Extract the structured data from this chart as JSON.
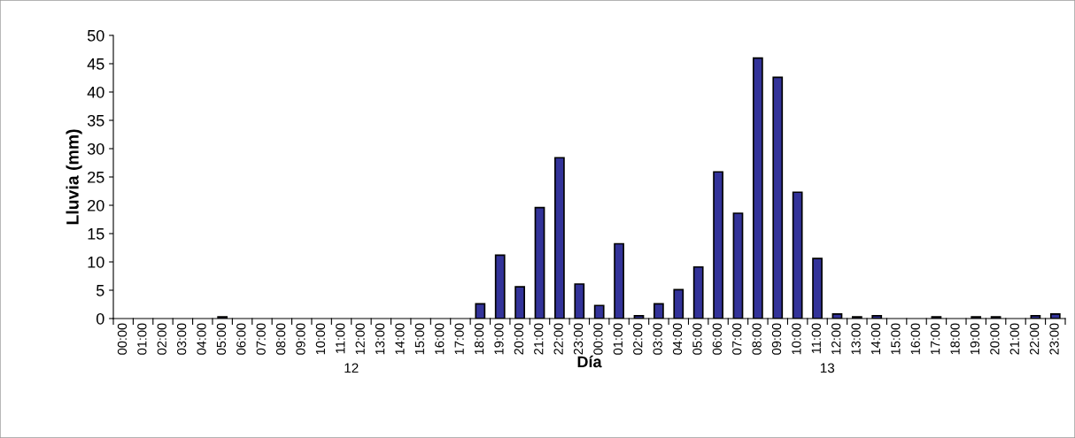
{
  "chart_data": {
    "type": "bar",
    "xlabel": "Día",
    "ylabel": "Lluvia (mm)",
    "categories": [
      "00:00",
      "01:00",
      "02:00",
      "03:00",
      "04:00",
      "05:00",
      "06:00",
      "07:00",
      "08:00",
      "09:00",
      "10:00",
      "11:00",
      "12:00",
      "13:00",
      "14:00",
      "15:00",
      "16:00",
      "17:00",
      "18:00",
      "19:00",
      "20:00",
      "21:00",
      "22:00",
      "23:00",
      "00:00",
      "01:00",
      "02:00",
      "03:00",
      "04:00",
      "05:00",
      "06:00",
      "07:00",
      "08:00",
      "09:00",
      "10:00",
      "11:00",
      "12:00",
      "13:00",
      "14:00",
      "15:00",
      "16:00",
      "17:00",
      "18:00",
      "19:00",
      "20:00",
      "21:00",
      "22:00",
      "23:00"
    ],
    "values": [
      0,
      0,
      0,
      0,
      0,
      0.3,
      0,
      0,
      0,
      0,
      0,
      0,
      0,
      0,
      0,
      0,
      0,
      0,
      2.6,
      11.2,
      5.6,
      19.6,
      28.4,
      6.1,
      2.3,
      13.2,
      0.5,
      2.6,
      5.1,
      9.1,
      25.9,
      18.6,
      46,
      42.6,
      22.3,
      10.6,
      0.8,
      0.3,
      0.5,
      0,
      0,
      0.3,
      0,
      0.3,
      0.3,
      0,
      0.5,
      0.8
    ],
    "color": "#333399",
    "ylim": [
      0,
      50
    ],
    "yticks": [
      0,
      5,
      10,
      15,
      20,
      25,
      30,
      35,
      40,
      45,
      50
    ],
    "grid": false,
    "legend": false,
    "annotations": [
      "12",
      "13"
    ]
  }
}
